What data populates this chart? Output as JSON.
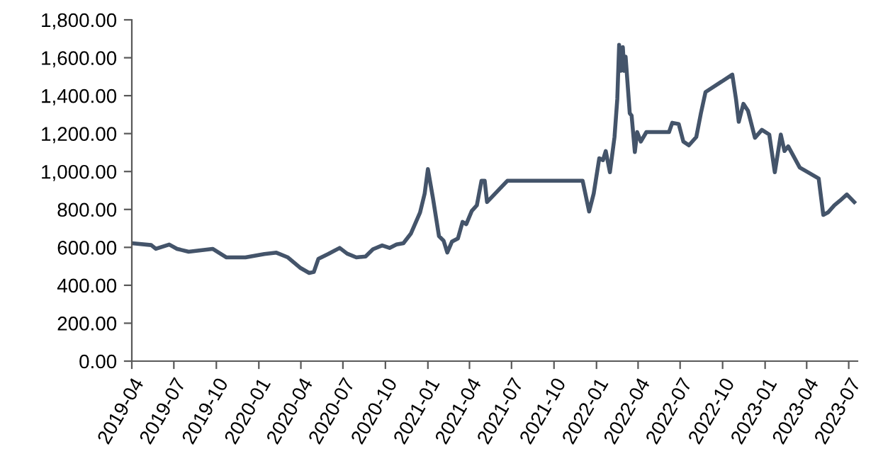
{
  "chart_data": {
    "type": "line",
    "x": [
      "2019-04-01",
      "2019-05-13",
      "2019-05-23",
      "2019-06-21",
      "2019-07-08",
      "2019-08-02",
      "2019-09-23",
      "2019-10-23",
      "2019-12-03",
      "2020-01-13",
      "2020-02-08",
      "2020-03-04",
      "2020-03-30",
      "2020-04-19",
      "2020-04-29",
      "2020-05-09",
      "2020-05-30",
      "2020-06-24",
      "2020-07-10",
      "2020-07-30",
      "2020-08-19",
      "2020-09-04",
      "2020-09-24",
      "2020-10-10",
      "2020-10-25",
      "2020-11-09",
      "2020-11-25",
      "2020-12-15",
      "2020-12-25",
      "2021-01-01",
      "2021-01-12",
      "2021-01-25",
      "2021-02-04",
      "2021-02-12",
      "2021-02-22",
      "2021-03-07",
      "2021-03-17",
      "2021-03-25",
      "2021-04-06",
      "2021-04-17",
      "2021-04-27",
      "2021-05-04",
      "2021-05-09",
      "2021-06-22",
      "2021-12-02",
      "2021-12-16",
      "2021-12-26",
      "2022-01-07",
      "2022-01-15",
      "2022-01-21",
      "2022-01-30",
      "2022-02-09",
      "2022-02-15",
      "2022-02-19",
      "2022-02-23",
      "2022-02-27",
      "2022-03-02",
      "2022-03-05",
      "2022-03-14",
      "2022-03-18",
      "2022-03-25",
      "2022-03-30",
      "2022-04-07",
      "2022-04-19",
      "2022-06-07",
      "2022-06-14",
      "2022-06-28",
      "2022-07-08",
      "2022-07-20",
      "2022-08-05",
      "2022-08-15",
      "2022-08-25",
      "2022-10-22",
      "2022-10-30",
      "2022-11-05",
      "2022-11-15",
      "2022-11-25",
      "2022-12-10",
      "2022-12-25",
      "2023-01-10",
      "2023-01-22",
      "2023-02-04",
      "2023-02-12",
      "2023-02-20",
      "2023-03-17",
      "2023-04-04",
      "2023-04-27",
      "2023-05-07",
      "2023-05-17",
      "2023-05-31",
      "2023-06-12",
      "2023-06-27",
      "2023-07-13"
    ],
    "series": [
      {
        "color": "#44546a",
        "values": [
          622,
          612,
          592,
          615,
          592,
          577,
          592,
          547,
          547,
          565,
          572,
          547,
          493,
          465,
          470,
          540,
          565,
          597,
          567,
          547,
          552,
          590,
          610,
          597,
          615,
          622,
          672,
          784,
          884,
          1013,
          859,
          659,
          635,
          573,
          630,
          647,
          734,
          722,
          792,
          822,
          951,
          951,
          839,
          951,
          951,
          789,
          884,
          1070,
          1060,
          1108,
          996,
          1182,
          1382,
          1668,
          1531,
          1656,
          1531,
          1606,
          1307,
          1295,
          1103,
          1208,
          1158,
          1208,
          1208,
          1257,
          1250,
          1158,
          1138,
          1182,
          1307,
          1419,
          1511,
          1382,
          1262,
          1357,
          1320,
          1178,
          1220,
          1195,
          996,
          1195,
          1108,
          1133,
          1021,
          996,
          963,
          771,
          784,
          822,
          846,
          879,
          839
        ]
      }
    ],
    "xlim": [
      "2019-04-01",
      "2023-07-20"
    ],
    "xticks": [
      "2019-04",
      "2019-07",
      "2019-10",
      "2020-01",
      "2020-04",
      "2020-07",
      "2020-10",
      "2021-01",
      "2021-04",
      "2021-07",
      "2021-10",
      "2022-01",
      "2022-04",
      "2022-07",
      "2022-10",
      "2023-01",
      "2023-04",
      "2023-07"
    ],
    "ylim": [
      0,
      1800
    ],
    "yticks": [
      {
        "value": 0,
        "label": "0.00"
      },
      {
        "value": 200,
        "label": "200.00"
      },
      {
        "value": 400,
        "label": "400.00"
      },
      {
        "value": 600,
        "label": "600.00"
      },
      {
        "value": 800,
        "label": "800.00"
      },
      {
        "value": 1000,
        "label": "1,000.00"
      },
      {
        "value": 1200,
        "label": "1,200.00"
      },
      {
        "value": 1400,
        "label": "1,400.00"
      },
      {
        "value": 1600,
        "label": "1,600.00"
      },
      {
        "value": 1800,
        "label": "1,800.00"
      }
    ],
    "grid": false,
    "legend": false,
    "marker": "none",
    "line_style": "solid"
  }
}
